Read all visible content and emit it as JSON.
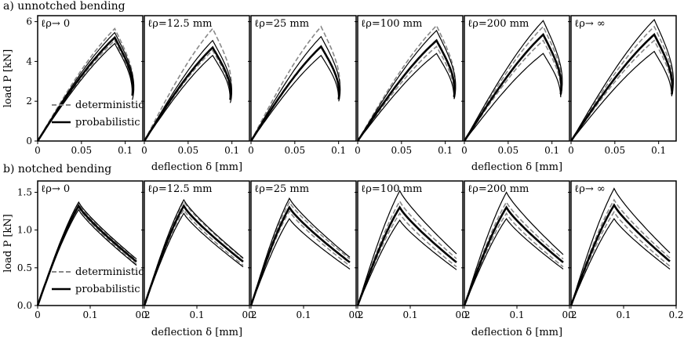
{
  "chart_data": [
    {
      "type": "line",
      "row_title": "a) unnotched bending",
      "ylabel": "load P [kN]",
      "xlabel": "deflection δ [mm]",
      "xlim": [
        0,
        0.12
      ],
      "ylim": [
        0,
        6.3
      ],
      "xticks": [
        0,
        0.05,
        0.1
      ],
      "xtick_labels": [
        "0",
        "0.05",
        "0.1"
      ],
      "yticks": [
        0,
        2,
        4,
        6
      ],
      "ytick_labels": [
        "0",
        "2",
        "4",
        "6"
      ],
      "legend": {
        "location": "lower-left",
        "entries": [
          "deterministic",
          "probabilistic"
        ]
      },
      "panels": [
        {
          "label": "ℓρ→ 0",
          "peak_x": 0.088,
          "prob": [
            4.9,
            5.2,
            5.45
          ],
          "det": [
            5.05,
            5.65
          ]
        },
        {
          "label": "ℓρ=12.5 mm",
          "peak_x": 0.078,
          "prob": [
            4.3,
            4.7,
            5.05
          ],
          "det": [
            4.55,
            5.65
          ]
        },
        {
          "label": "ℓρ=25 mm",
          "peak_x": 0.08,
          "prob": [
            4.3,
            4.75,
            5.25
          ],
          "det": [
            4.75,
            5.75
          ]
        },
        {
          "label": "ℓρ=100 mm",
          "peak_x": 0.09,
          "prob": [
            4.4,
            5.05,
            5.55
          ],
          "det": [
            4.75,
            5.8
          ]
        },
        {
          "label": "ℓρ=200 mm",
          "peak_x": 0.09,
          "prob": [
            4.4,
            5.35,
            6.05
          ],
          "det": [
            5.05,
            5.75
          ]
        },
        {
          "label": "ℓρ→ ∞",
          "peak_x": 0.095,
          "prob": [
            4.5,
            5.35,
            6.1
          ],
          "det": [
            5.05,
            5.75
          ]
        }
      ]
    },
    {
      "type": "line",
      "row_title": "b) notched bending",
      "ylabel": "load P [kN]",
      "xlabel": "deflection δ [mm]",
      "xlim": [
        0,
        0.2
      ],
      "ylim": [
        0,
        1.65
      ],
      "xticks": [
        0,
        0.1,
        0.2
      ],
      "xtick_labels": [
        "0",
        "0.1",
        "0.2"
      ],
      "yticks": [
        0,
        0.5,
        1.0,
        1.5
      ],
      "ytick_labels": [
        "0.0",
        "0.5",
        "1.0",
        "1.5"
      ],
      "legend": {
        "location": "lower-left",
        "entries": [
          "deterministic",
          "probabilistic"
        ]
      },
      "panels": [
        {
          "label": "ℓρ→ 0",
          "peak_x": 0.078,
          "prob": [
            1.27,
            1.32,
            1.37
          ],
          "det": [
            1.3,
            1.35
          ]
        },
        {
          "label": "ℓρ=12.5 mm",
          "peak_x": 0.075,
          "prob": [
            1.22,
            1.32,
            1.4
          ],
          "det": [
            1.27,
            1.38
          ]
        },
        {
          "label": "ℓρ=25 mm",
          "peak_x": 0.073,
          "prob": [
            1.15,
            1.3,
            1.42
          ],
          "det": [
            1.25,
            1.37
          ]
        },
        {
          "label": "ℓρ=100 mm",
          "peak_x": 0.08,
          "prob": [
            1.13,
            1.3,
            1.52
          ],
          "det": [
            1.22,
            1.38
          ]
        },
        {
          "label": "ℓρ=200 mm",
          "peak_x": 0.08,
          "prob": [
            1.15,
            1.3,
            1.5
          ],
          "det": [
            1.22,
            1.37
          ]
        },
        {
          "label": "ℓρ→ ∞",
          "peak_x": 0.082,
          "prob": [
            1.15,
            1.33,
            1.55
          ],
          "det": [
            1.24,
            1.4
          ]
        }
      ]
    }
  ]
}
